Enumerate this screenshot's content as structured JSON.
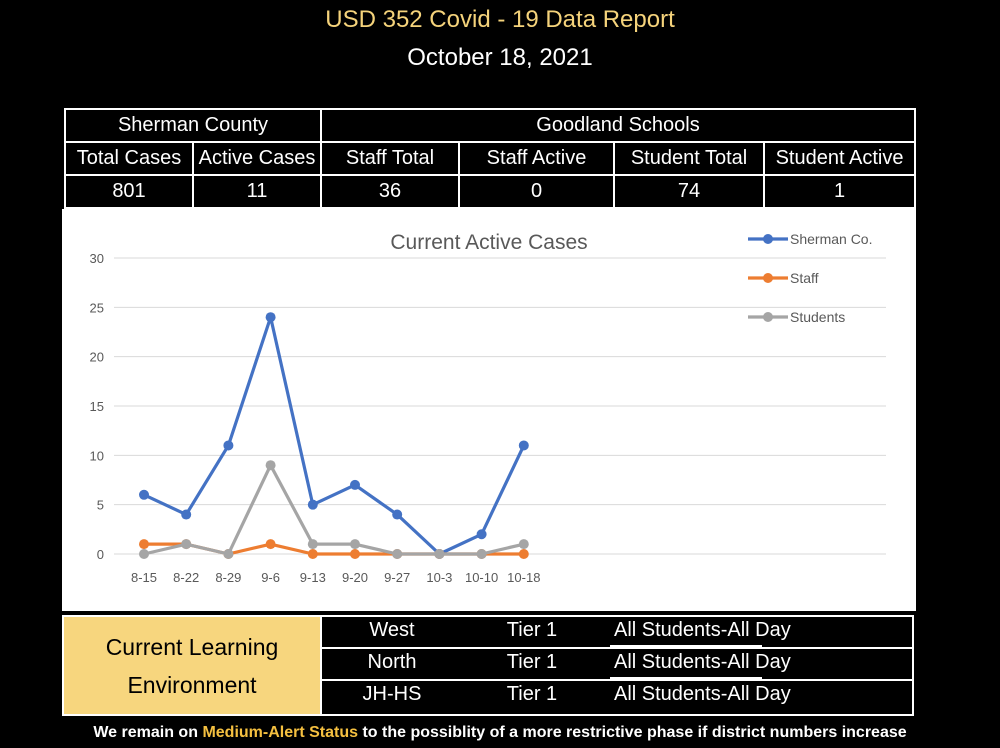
{
  "header": {
    "title": "USD 352 Covid - 19 Data Report",
    "date": "October 18, 2021"
  },
  "stats": {
    "groups": [
      "Sherman County",
      "Goodland Schools"
    ],
    "columns": [
      "Total Cases",
      "Active Cases",
      "Staff Total",
      "Staff Active",
      "Student Total",
      "Student Active"
    ],
    "values": [
      "801",
      "11",
      "36",
      "0",
      "74",
      "1"
    ]
  },
  "chart_data": {
    "type": "line",
    "title": "Current Active Cases",
    "categories": [
      "8-15",
      "8-22",
      "8-29",
      "9-6",
      "9-13",
      "9-20",
      "9-27",
      "10-3",
      "10-10",
      "10-18"
    ],
    "yticks": [
      "0",
      "5",
      "10",
      "15",
      "20",
      "25",
      "30"
    ],
    "ylim": [
      0,
      30
    ],
    "grid": true,
    "legend_position": "top-right",
    "series": [
      {
        "name": "Sherman Co.",
        "color": "#4472c4",
        "values": [
          6,
          4,
          11,
          24,
          5,
          7,
          4,
          0,
          2,
          11
        ]
      },
      {
        "name": "Staff",
        "color": "#ed7d31",
        "values": [
          1,
          1,
          0,
          1,
          0,
          0,
          0,
          0,
          0,
          0
        ]
      },
      {
        "name": "Students",
        "color": "#a5a5a5",
        "values": [
          0,
          1,
          0,
          9,
          1,
          1,
          0,
          0,
          0,
          1
        ]
      }
    ]
  },
  "environment": {
    "label": "Current Learning Environment",
    "label_color": "#f7d67e",
    "rows": [
      {
        "school": "West",
        "tier": "Tier 1",
        "status": "All Students-All Day"
      },
      {
        "school": "North",
        "tier": "Tier 1",
        "status": "All Students-All Day"
      },
      {
        "school": "JH-HS",
        "tier": "Tier 1",
        "status": "All Students-All Day"
      }
    ]
  },
  "footer": {
    "prefix": "We remain on",
    "highlight": "Medium-Alert Status",
    "suffix": "to the possiblity of a more restrictive phase if district numbers increase",
    "highlight_color": "#f5c040"
  }
}
